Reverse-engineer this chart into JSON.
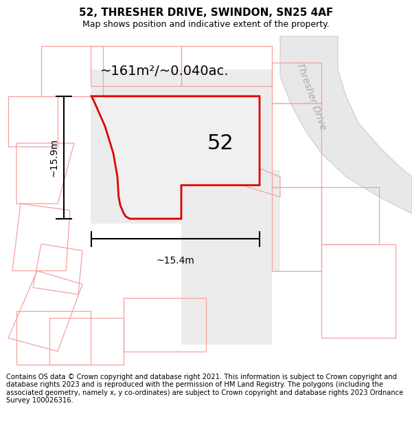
{
  "title": "52, THRESHER DRIVE, SWINDON, SN25 4AF",
  "subtitle": "Map shows position and indicative extent of the property.",
  "copyright": "Contains OS data © Crown copyright and database right 2021. This information is subject to Crown copyright and database rights 2023 and is reproduced with the permission of HM Land Registry. The polygons (including the associated geometry, namely x, y co-ordinates) are subject to Crown copyright and database rights 2023 Ordnance Survey 100026316.",
  "area_label": "~161m²/~0.040ac.",
  "plot_number": "52",
  "dim_vertical": "~15.9m",
  "dim_horizontal": "~15.4m",
  "road_label": "Thresher Drive",
  "figsize": [
    6.0,
    6.25
  ],
  "dpi": 100,
  "title_fontsize": 11,
  "subtitle_fontsize": 9,
  "footer_fontsize": 7.2,
  "area_fontsize": 14,
  "number_fontsize": 22,
  "dim_fontsize": 10,
  "road_fontsize": 10
}
